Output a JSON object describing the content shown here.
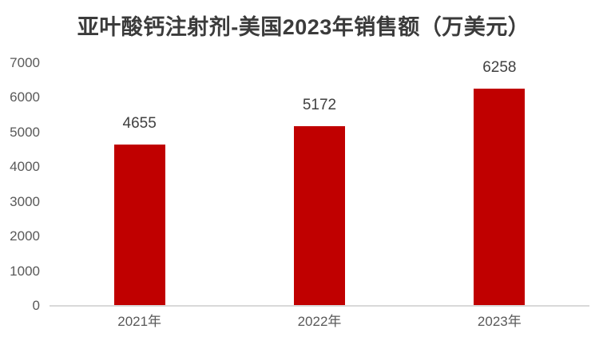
{
  "title": "亚叶酸钙注射剂-美国2023年销售额（万美元）",
  "colors": {
    "bar": "#c00000",
    "title_text": "#3b3b3b",
    "axis_text": "#595959",
    "data_label_text": "#404040",
    "axis_line": "#d9d9d9",
    "background": "#ffffff"
  },
  "chart_data": {
    "type": "bar",
    "title": "亚叶酸钙注射剂-美国2023年销售额（万美元）",
    "categories": [
      "2021年",
      "2022年",
      "2023年"
    ],
    "values": [
      4655,
      5172,
      6258
    ],
    "data_labels": [
      "4655",
      "5172",
      "6258"
    ],
    "yticks": [
      0,
      1000,
      2000,
      3000,
      4000,
      5000,
      6000,
      7000
    ],
    "ylim": [
      0,
      7000
    ],
    "xlabel": "",
    "ylabel": "",
    "grid": false,
    "legend": false,
    "data_labels_shown": true,
    "bar_color": "#c00000"
  }
}
